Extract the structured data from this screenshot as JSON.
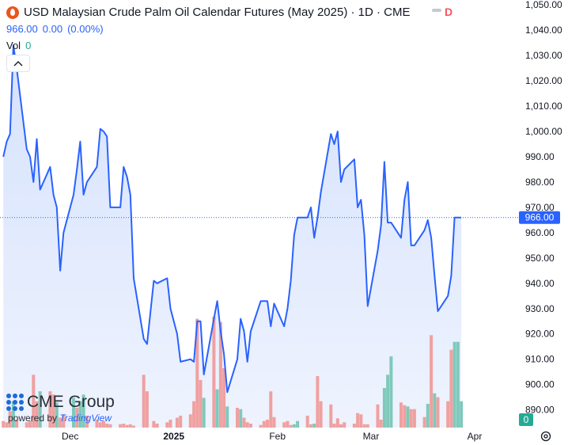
{
  "header": {
    "title": "USD Malaysian Crude Palm Oil Calendar Futures (May 2025) · 1D · CME",
    "market_status_badge": "D",
    "icon": "palm-oil-drop-icon",
    "price": "966.00",
    "change": "0.00",
    "change_pct": "(0.00%)"
  },
  "volume_indicator": {
    "label": "Vol",
    "value": "0"
  },
  "logo": {
    "name": "CME Group",
    "powered_prefix": "powered by",
    "powered_brand": "TradingView"
  },
  "colors": {
    "line": "#2962ff",
    "area_fill": "#e3ebfd",
    "volume_up": "#7fc9bb",
    "volume_down": "#f0a0a0",
    "price_tag": "#2962ff",
    "volume_tag": "#22ab94",
    "text": "#131722",
    "axis_text": "#131722"
  },
  "chart_data": {
    "type": "line",
    "title": "USD Malaysian Crude Palm Oil Calendar Futures (May 2025)",
    "interval": "1D",
    "exchange": "CME",
    "last_price": 966.0,
    "last_price_label": "966.00",
    "last_volume_label": "0",
    "y_axis": {
      "min": 883,
      "max": 1051,
      "ticks": [
        890,
        900,
        910,
        920,
        930,
        940,
        950,
        960,
        970,
        980,
        990,
        1000,
        1010,
        1020,
        1030,
        1040,
        1050
      ],
      "tick_labels": [
        "890.00",
        "900.00",
        "910.00",
        "920.00",
        "930.00",
        "940.00",
        "950.00",
        "960.00",
        "970.00",
        "980.00",
        "990.00",
        "1,000.00",
        "1,010.00",
        "1,020.00",
        "1,030.00",
        "1,040.00",
        "1,050.00"
      ]
    },
    "x_axis": {
      "tick_labels": [
        "Dec",
        "2025",
        "Feb",
        "Mar",
        "Apr"
      ],
      "tick_dates": [
        "2024-12-01",
        "2025-01-01",
        "2025-02-01",
        "2025-03-01",
        "2025-04-01"
      ]
    },
    "series": [
      {
        "x": [
          "2024-11-11",
          "2024-11-12",
          "2024-11-13",
          "2024-11-14",
          "2024-11-15",
          "2024-11-18",
          "2024-11-19",
          "2024-11-20",
          "2024-11-21",
          "2024-11-22",
          "2024-11-25",
          "2024-11-26",
          "2024-11-27",
          "2024-11-28",
          "2024-11-29",
          "2024-12-02",
          "2024-12-03",
          "2024-12-04",
          "2024-12-05",
          "2024-12-06",
          "2024-12-09",
          "2024-12-10",
          "2024-12-11",
          "2024-12-12",
          "2024-12-13",
          "2024-12-16",
          "2024-12-17",
          "2024-12-18",
          "2024-12-19",
          "2024-12-20",
          "2024-12-23",
          "2024-12-24",
          "2024-12-26",
          "2024-12-27",
          "2024-12-30",
          "2024-12-31",
          "2025-01-02",
          "2025-01-03",
          "2025-01-06",
          "2025-01-07",
          "2025-01-08",
          "2025-01-09",
          "2025-01-10",
          "2025-01-13",
          "2025-01-14",
          "2025-01-15",
          "2025-01-16",
          "2025-01-17",
          "2025-01-20",
          "2025-01-21",
          "2025-01-22",
          "2025-01-23",
          "2025-01-24",
          "2025-01-27",
          "2025-01-28",
          "2025-01-29",
          "2025-01-30",
          "2025-01-31",
          "2025-02-03",
          "2025-02-04",
          "2025-02-05",
          "2025-02-06",
          "2025-02-07",
          "2025-02-10",
          "2025-02-11",
          "2025-02-12",
          "2025-02-13",
          "2025-02-14",
          "2025-02-17",
          "2025-02-18",
          "2025-02-19",
          "2025-02-20",
          "2025-02-21",
          "2025-02-24",
          "2025-02-25",
          "2025-02-26",
          "2025-02-27",
          "2025-02-28",
          "2025-03-03",
          "2025-03-04",
          "2025-03-05",
          "2025-03-06",
          "2025-03-07",
          "2025-03-10",
          "2025-03-11",
          "2025-03-12",
          "2025-03-13",
          "2025-03-14",
          "2025-03-17",
          "2025-03-18",
          "2025-03-19",
          "2025-03-20",
          "2025-03-21",
          "2025-03-24",
          "2025-03-25",
          "2025-03-26",
          "2025-03-27",
          "2025-03-28"
        ],
        "y": [
          990,
          996,
          999,
          1034,
          1025,
          993,
          990,
          980,
          997,
          977,
          986,
          975,
          970,
          945,
          960,
          975,
          985,
          996,
          975,
          980,
          986,
          1001,
          1000,
          998,
          970,
          970,
          986,
          982,
          975,
          942,
          918,
          916,
          941,
          940,
          942,
          930,
          920,
          909,
          910,
          909,
          925,
          925,
          904,
          926,
          933,
          921,
          912,
          897,
          910,
          926,
          921,
          909,
          921,
          933,
          933,
          933,
          923,
          932,
          923,
          930,
          941,
          959,
          966,
          966,
          970,
          958,
          966,
          976,
          999,
          995,
          1000,
          980,
          985,
          989,
          970,
          973,
          959,
          931,
          953,
          963,
          988,
          964,
          964,
          958,
          973,
          980,
          955,
          955,
          961,
          965,
          958,
          943,
          929,
          935,
          943,
          966,
          966,
          966
        ],
        "volume_up": [
          false,
          false,
          false,
          true,
          false,
          false,
          false,
          false,
          false,
          true,
          false,
          false,
          true,
          false,
          false,
          true,
          false,
          true,
          true,
          false,
          false,
          false,
          false,
          false,
          false,
          false,
          false,
          false,
          false,
          false,
          false,
          false,
          false,
          false,
          false,
          false,
          false,
          false,
          false,
          false,
          false,
          false,
          true,
          false,
          true,
          false,
          false,
          true,
          false,
          true,
          false,
          false,
          false,
          false,
          false,
          false,
          false,
          false,
          false,
          false,
          false,
          true,
          true,
          false,
          false,
          true,
          false,
          false,
          false,
          false,
          false,
          false,
          false,
          false,
          false,
          false,
          false,
          false,
          false,
          false,
          true,
          true,
          true,
          false,
          false,
          true,
          false,
          false,
          false,
          true,
          false,
          true,
          false,
          false,
          false,
          true,
          true,
          true
        ],
        "volume": [
          10,
          8,
          25,
          40,
          12,
          8,
          10,
          80,
          40,
          55,
          55,
          50,
          38,
          15,
          20,
          45,
          30,
          40,
          50,
          18,
          12,
          8,
          10,
          6,
          5,
          5,
          6,
          4,
          5,
          3,
          80,
          55,
          10,
          6,
          8,
          12,
          15,
          18,
          20,
          40,
          165,
          72,
          45,
          168,
          58,
          160,
          90,
          32,
          30,
          28,
          15,
          8,
          6,
          4,
          10,
          12,
          55,
          16,
          8,
          10,
          4,
          5,
          10,
          18,
          5,
          6,
          78,
          40,
          35,
          6,
          14,
          5,
          8,
          6,
          22,
          20,
          5,
          5,
          35,
          12,
          60,
          80,
          108,
          38,
          34,
          32,
          28,
          28,
          16,
          36,
          140,
          52,
          46,
          40,
          118,
          130,
          130,
          40
        ]
      }
    ]
  }
}
